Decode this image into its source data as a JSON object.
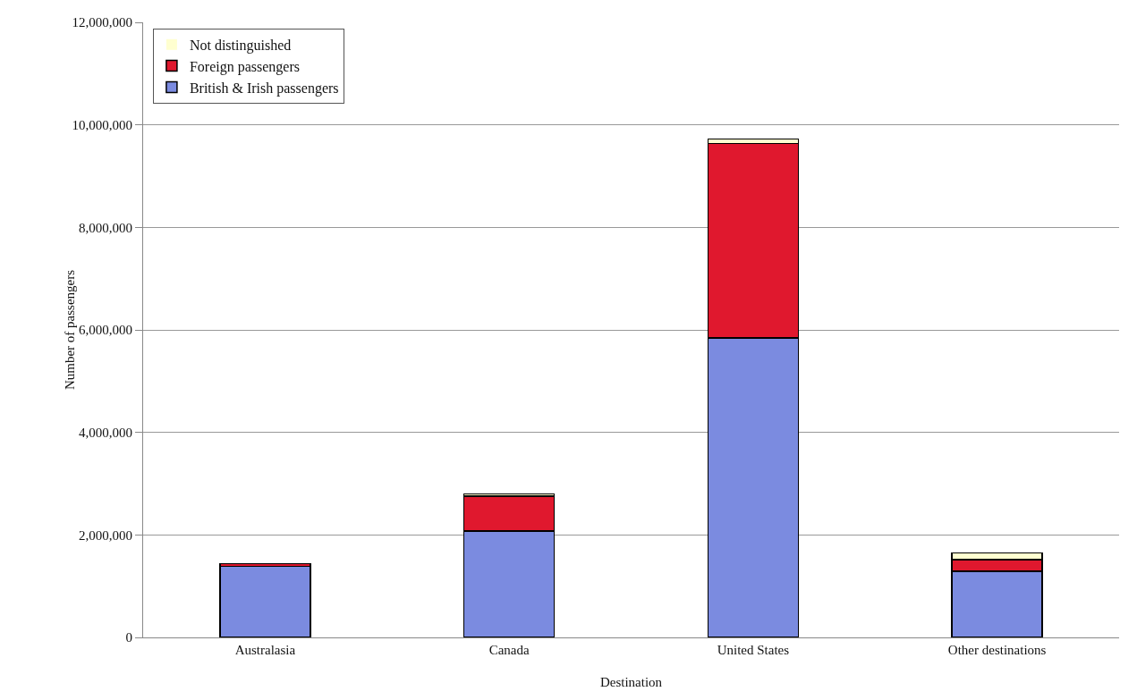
{
  "chart_data": {
    "type": "bar",
    "stacked": true,
    "xlabel": "Destination",
    "ylabel": "Number of passengers",
    "categories": [
      "Australasia",
      "Canada",
      "United States",
      "Other destinations"
    ],
    "series": [
      {
        "name": "British & Irish passengers",
        "color": "#7b8be0",
        "values": [
          1390000,
          2080000,
          5840000,
          1290000
        ]
      },
      {
        "name": "Foreign passengers",
        "color": "#e0182e",
        "values": [
          50000,
          680000,
          3800000,
          230000
        ]
      },
      {
        "name": "Not distinguished",
        "color": "#ffffd0",
        "values": [
          0,
          40000,
          80000,
          130000
        ]
      }
    ],
    "ylim": [
      0,
      12000000
    ],
    "yticks": [
      {
        "value": 0,
        "label": "0"
      },
      {
        "value": 2000000,
        "label": "2,000,000"
      },
      {
        "value": 4000000,
        "label": "4,000,000"
      },
      {
        "value": 6000000,
        "label": "6,000,000"
      },
      {
        "value": 8000000,
        "label": "8,000,000"
      },
      {
        "value": 10000000,
        "label": "10,000,000"
      },
      {
        "value": 12000000,
        "label": "12,000,000"
      }
    ],
    "grid": "y",
    "legend": "top left"
  }
}
